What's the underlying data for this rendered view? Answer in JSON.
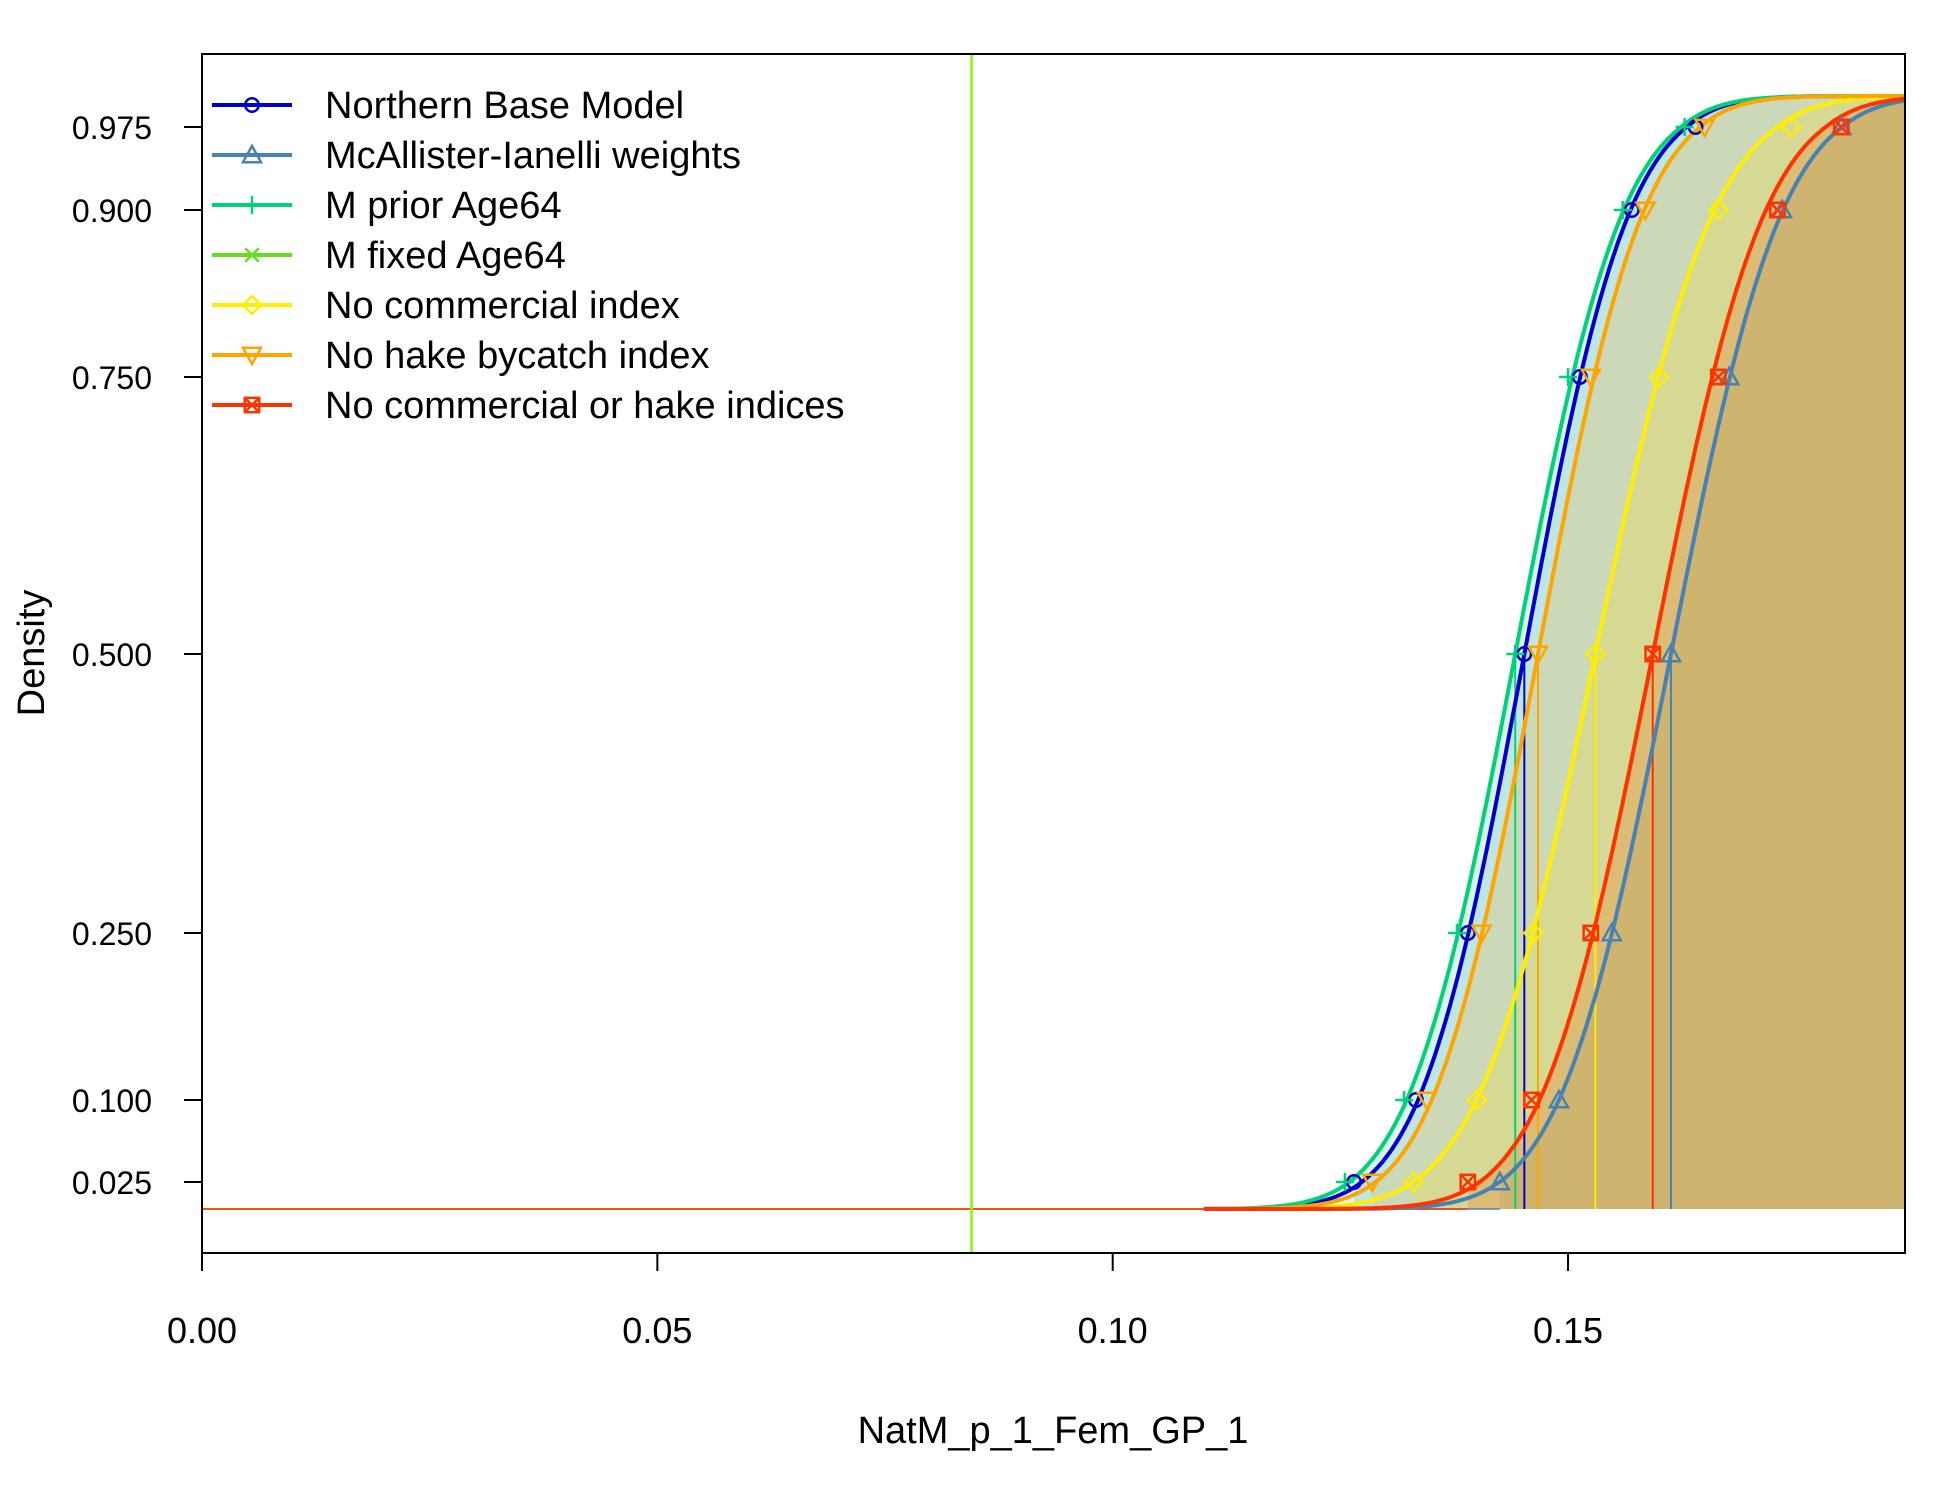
{
  "chart_data": {
    "type": "line",
    "title": "",
    "xlabel": "NatM_p_1_Fem_GP_1",
    "ylabel": "Density",
    "xlim": [
      0,
      0.187
    ],
    "x_ticks": [
      0.0,
      0.05,
      0.1,
      0.15
    ],
    "x_tick_labels": [
      "0.00",
      "0.05",
      "0.10",
      "0.15"
    ],
    "y_ticks": [
      0.025,
      0.1,
      0.25,
      0.5,
      0.75,
      0.9,
      0.975
    ],
    "y_tick_labels": [
      "0.025",
      "0.100",
      "0.250",
      "0.500",
      "0.750",
      "0.900",
      "0.975"
    ],
    "grid": false,
    "legend_position": "top-left",
    "reference_line": {
      "x": 0.0845,
      "color": "#7CFC00"
    },
    "baseline_y": 0.0,
    "series": [
      {
        "name": "Northern Base Model",
        "color": "#0000CD",
        "marker": "circle",
        "mean": 0.1452,
        "sd": 0.0091,
        "fill": "rgba(100,149,237,0.20)",
        "points": [
          {
            "x": 0.1265,
            "y": 0.025
          },
          {
            "x": 0.1333,
            "y": 0.1
          },
          {
            "x": 0.139,
            "y": 0.25
          },
          {
            "x": 0.1452,
            "y": 0.5
          },
          {
            "x": 0.1513,
            "y": 0.75
          },
          {
            "x": 0.157,
            "y": 0.9
          },
          {
            "x": 0.164,
            "y": 0.975
          }
        ]
      },
      {
        "name": "McAllister-Ianelli weights",
        "color": "#4682B4",
        "marker": "triangle-up",
        "mean": 0.1613,
        "sd": 0.0096,
        "fill": "rgba(70,130,180,0.20)",
        "points": [
          {
            "x": 0.1425,
            "y": 0.025
          },
          {
            "x": 0.149,
            "y": 0.1
          },
          {
            "x": 0.1548,
            "y": 0.25
          },
          {
            "x": 0.1613,
            "y": 0.5
          },
          {
            "x": 0.1677,
            "y": 0.75
          },
          {
            "x": 0.1735,
            "y": 0.9
          },
          {
            "x": 0.18,
            "y": 0.975
          }
        ]
      },
      {
        "name": "M prior Age64",
        "color": "#00D27A",
        "marker": "plus",
        "mean": 0.1442,
        "sd": 0.0093,
        "fill": "rgba(0,210,122,0.15)",
        "points": [
          {
            "x": 0.1255,
            "y": 0.025
          },
          {
            "x": 0.132,
            "y": 0.1
          },
          {
            "x": 0.1378,
            "y": 0.25
          },
          {
            "x": 0.1442,
            "y": 0.5
          },
          {
            "x": 0.15,
            "y": 0.75
          },
          {
            "x": 0.156,
            "y": 0.9
          },
          {
            "x": 0.1628,
            "y": 0.975
          }
        ]
      },
      {
        "name": "M fixed Age64",
        "color": "#66DD22",
        "marker": "cross",
        "mean": null,
        "sd": null,
        "points": []
      },
      {
        "name": "No commercial index",
        "color": "#FFEE00",
        "marker": "diamond",
        "mean": 0.153,
        "sd": 0.0102,
        "fill": "rgba(255,230,0,0.20)",
        "points": [
          {
            "x": 0.133,
            "y": 0.025
          },
          {
            "x": 0.14,
            "y": 0.1
          },
          {
            "x": 0.1462,
            "y": 0.25
          },
          {
            "x": 0.153,
            "y": 0.5
          },
          {
            "x": 0.16,
            "y": 0.75
          },
          {
            "x": 0.1665,
            "y": 0.9
          },
          {
            "x": 0.1745,
            "y": 0.975
          }
        ]
      },
      {
        "name": "No hake bycatch index",
        "color": "#FFA500",
        "marker": "triangle-down",
        "mean": 0.1467,
        "sd": 0.0091,
        "fill": "rgba(255,165,0,0.20)",
        "points": [
          {
            "x": 0.1285,
            "y": 0.025
          },
          {
            "x": 0.1345,
            "y": 0.1
          },
          {
            "x": 0.1405,
            "y": 0.25
          },
          {
            "x": 0.1467,
            "y": 0.5
          },
          {
            "x": 0.1525,
            "y": 0.75
          },
          {
            "x": 0.1585,
            "y": 0.9
          },
          {
            "x": 0.165,
            "y": 0.975
          }
        ]
      },
      {
        "name": "No commercial or hake indices",
        "color": "#FF3300",
        "marker": "square-x",
        "mean": 0.1593,
        "sd": 0.0097,
        "fill": "rgba(255,80,0,0.20)",
        "points": [
          {
            "x": 0.139,
            "y": 0.025
          },
          {
            "x": 0.146,
            "y": 0.1
          },
          {
            "x": 0.1525,
            "y": 0.25
          },
          {
            "x": 0.1593,
            "y": 0.5
          },
          {
            "x": 0.1665,
            "y": 0.75
          },
          {
            "x": 0.173,
            "y": 0.9
          },
          {
            "x": 0.18,
            "y": 0.975
          }
        ]
      }
    ]
  }
}
